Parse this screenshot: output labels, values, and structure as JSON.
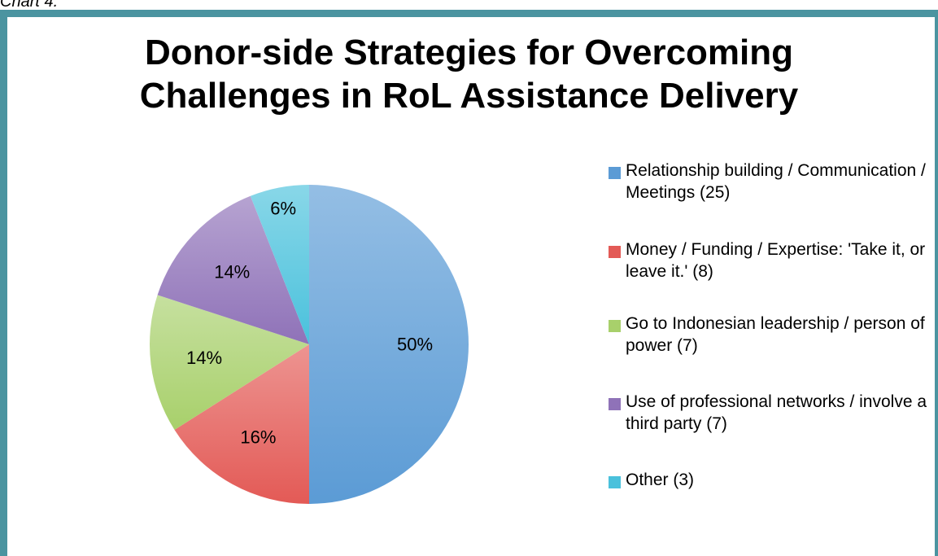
{
  "caption": "Chart 4.",
  "chart_data": {
    "type": "pie",
    "title": "Donor-side Strategies for Overcoming\nChallenges in RoL Assistance Delivery",
    "legend_position": "right",
    "slices": [
      {
        "label": "Relationship building / Communication / Meetings (25)",
        "value": 25,
        "percent_label": "50%",
        "color": "#5b9bd5"
      },
      {
        "label": "Money / Funding / Expertise: 'Take it, or leave it.' (8)",
        "value": 8,
        "percent_label": "16%",
        "color": "#e35a56"
      },
      {
        "label": "Go to Indonesian leadership / person of power (7)",
        "value": 7,
        "percent_label": "14%",
        "color": "#a8d06b"
      },
      {
        "label": "Use of professional networks / involve a third party (7)",
        "value": 7,
        "percent_label": "14%",
        "color": "#8f72b8"
      },
      {
        "label": "Other (3)",
        "value": 3,
        "percent_label": "6%",
        "color": "#4ac1dc"
      }
    ]
  }
}
